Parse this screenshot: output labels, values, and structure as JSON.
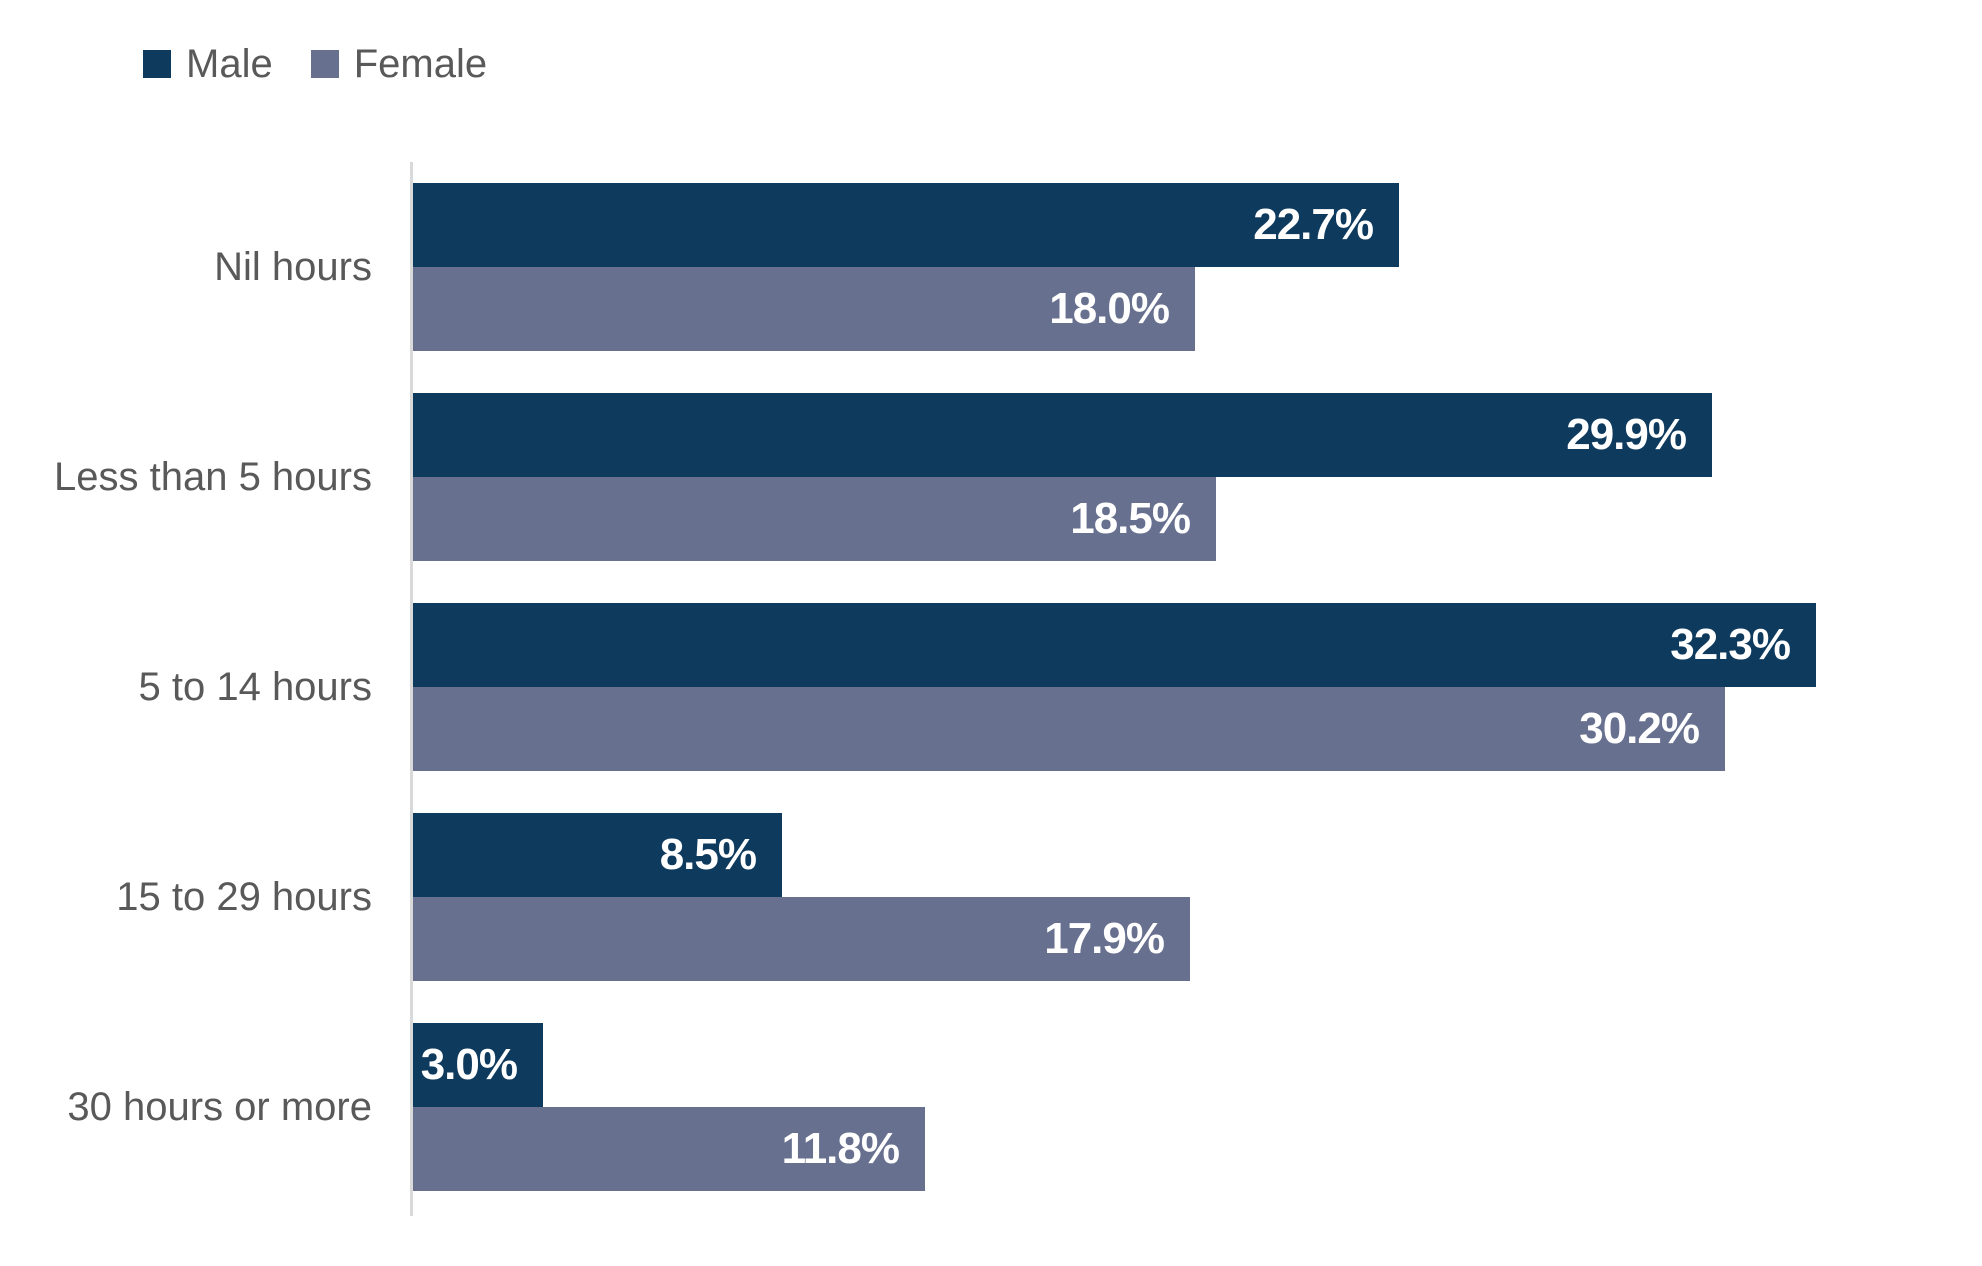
{
  "chart_data": {
    "type": "bar",
    "orientation": "horizontal",
    "title": "",
    "categories": [
      "Nil hours",
      "Less than 5 hours",
      "5 to 14 hours",
      "15 to 29 hours",
      "30 hours or more"
    ],
    "series": [
      {
        "name": "Male",
        "color": "#0E3A5E",
        "values": [
          22.7,
          29.9,
          32.3,
          8.5,
          3.0
        ],
        "value_labels": [
          "22.7%",
          "29.9%",
          "32.3%",
          "8.5%",
          "3.0%"
        ]
      },
      {
        "name": "Female",
        "color": "#67708F",
        "values": [
          18.0,
          18.5,
          30.2,
          17.9,
          11.8
        ],
        "value_labels": [
          "18.0%",
          "18.5%",
          "30.2%",
          "17.9%",
          "11.8%"
        ]
      }
    ],
    "xlim": [
      0,
      35
    ],
    "grid": false,
    "legend_position": "top-left",
    "value_label_color": "#FFFFFF",
    "category_label_color": "#595959",
    "axis_line_color": "#D9D9D9"
  }
}
